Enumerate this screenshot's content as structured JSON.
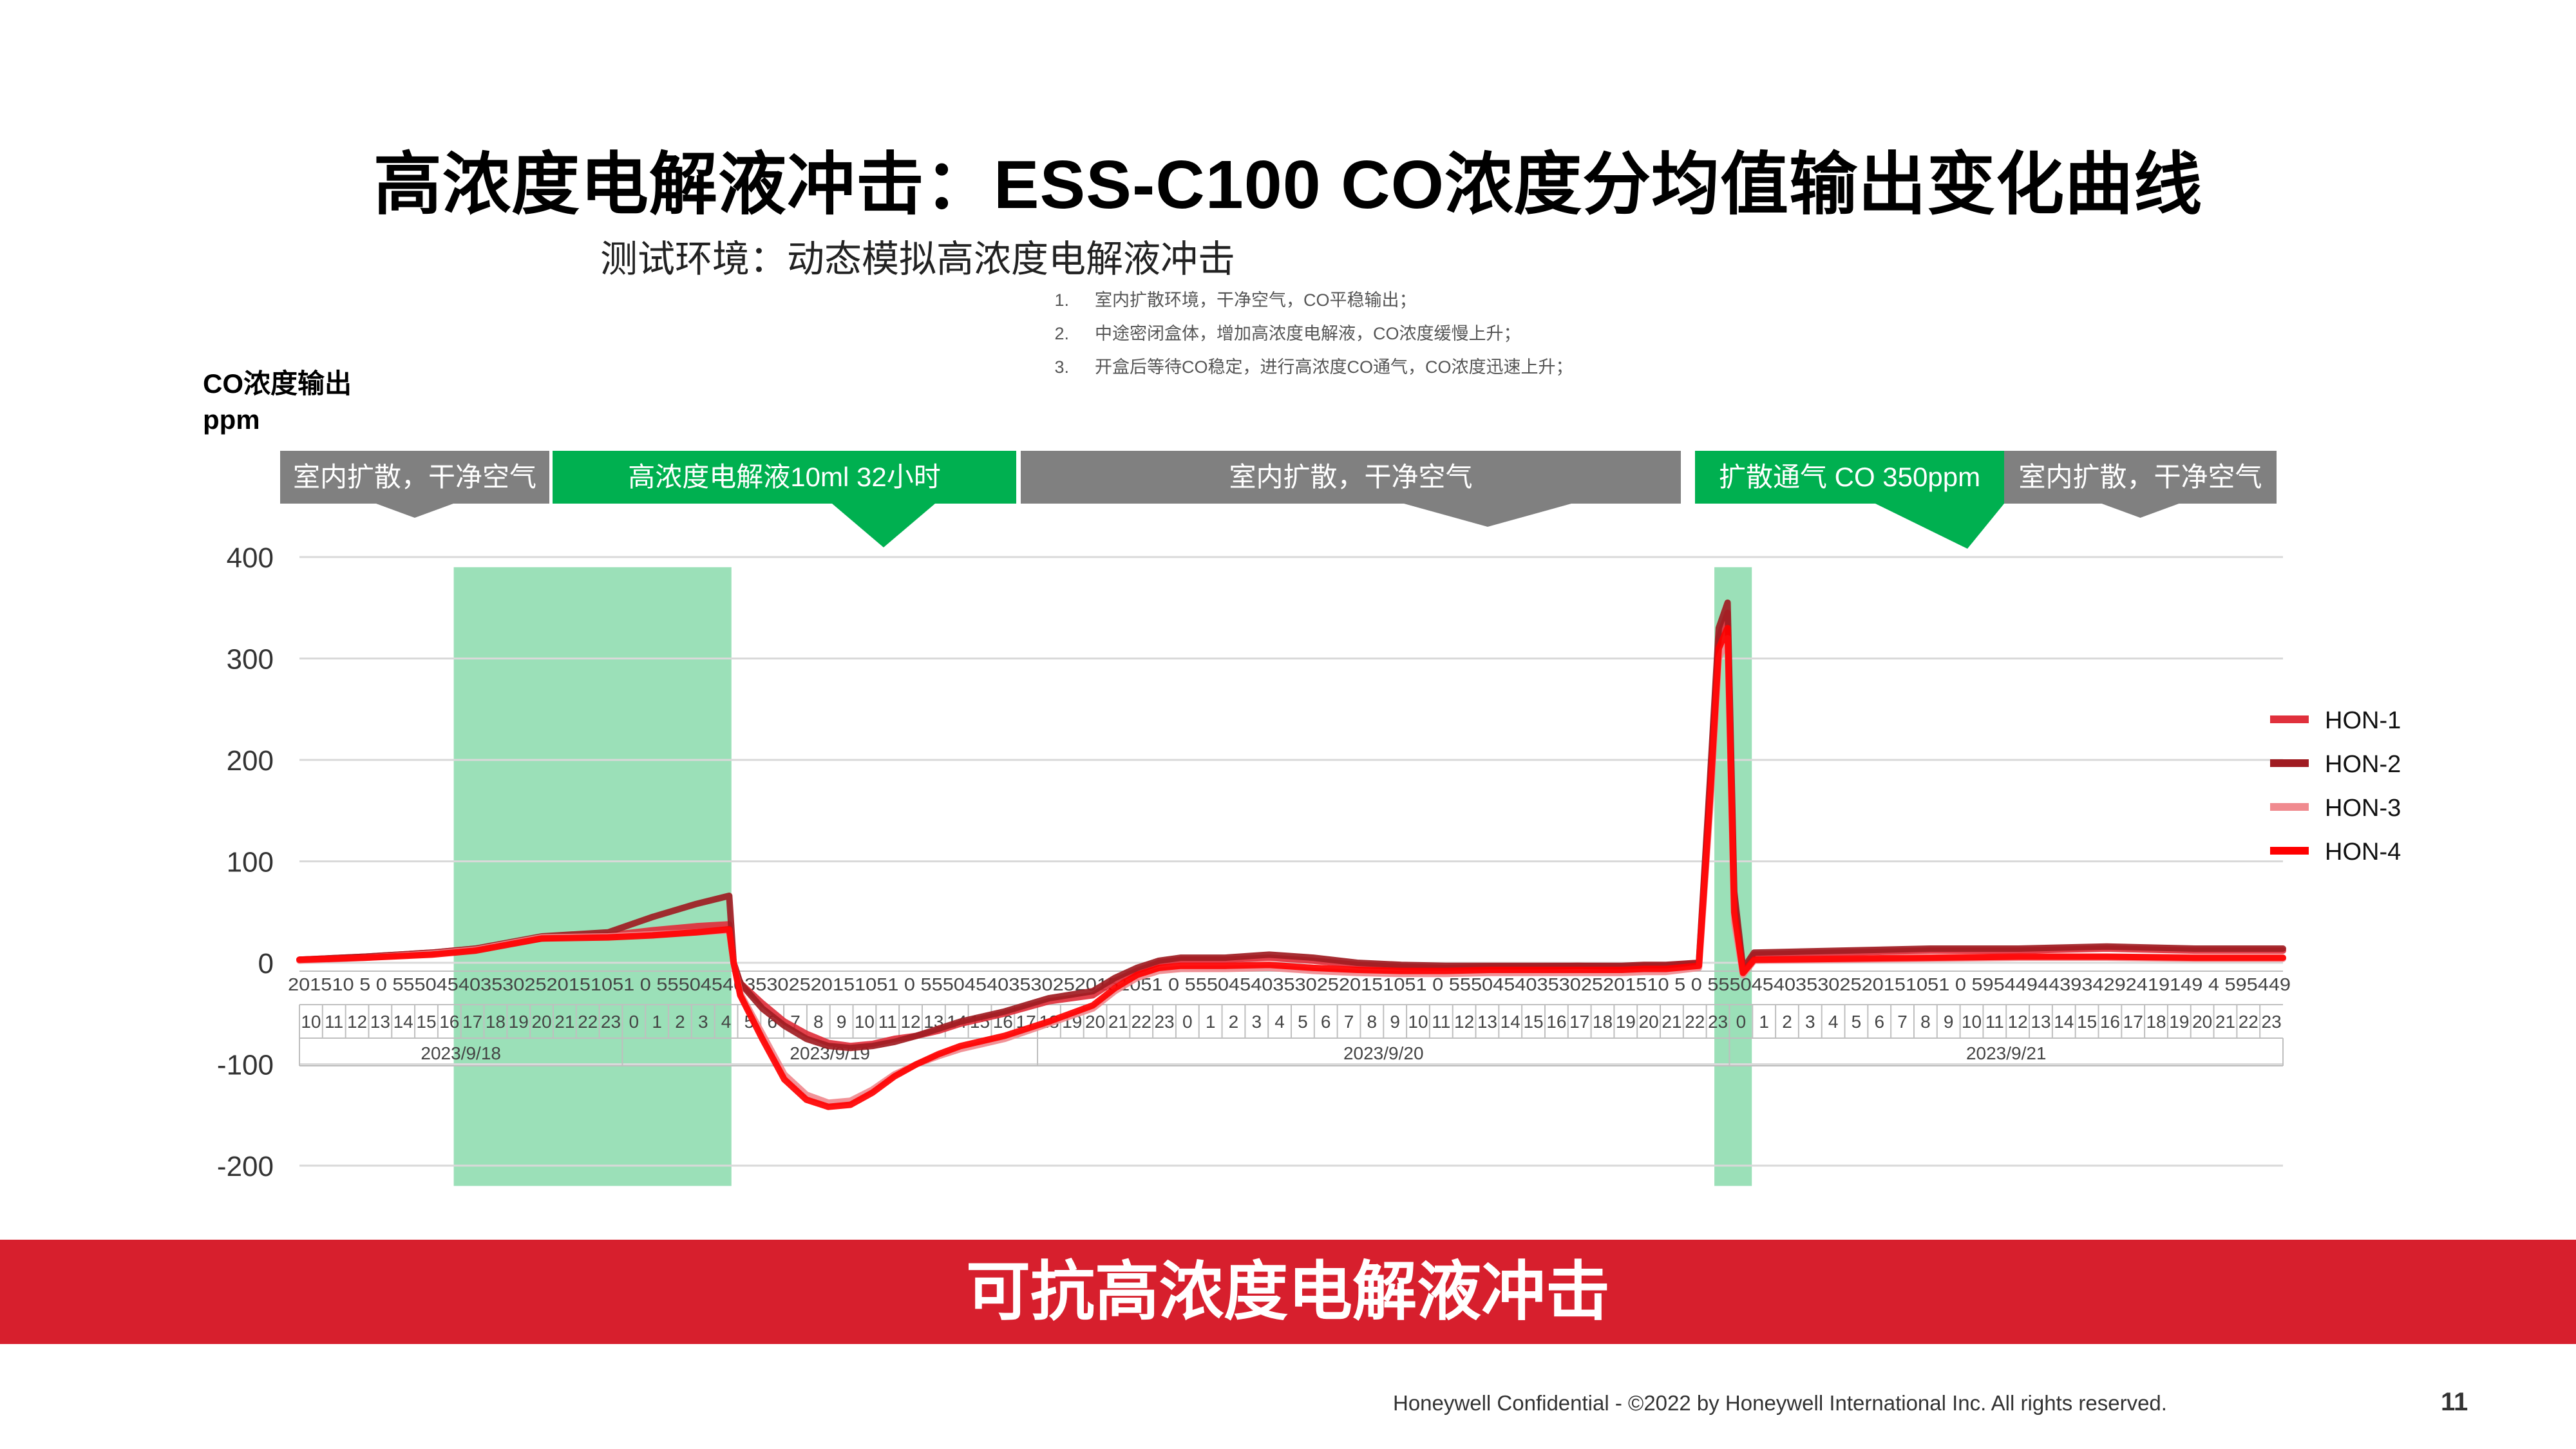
{
  "slide": {
    "title": "高浓度电解液冲击：ESS-C100 CO浓度分均值输出变化曲线",
    "subtitle": "测试环境：动态模拟高浓度电解液冲击",
    "notes": [
      {
        "num": "1.",
        "text": "室内扩散环境，干净空气，CO平稳输出；"
      },
      {
        "num": "2.",
        "text": "中途密闭盒体，增加高浓度电解液，CO浓度缓慢上升；"
      },
      {
        "num": "3.",
        "text": "开盒后等待CO稳定，进行高浓度CO通气，CO浓度迅速上升；"
      }
    ],
    "ylabel_line1": "CO浓度输出",
    "ylabel_line2": "ppm",
    "banner": "可抗高浓度电解液冲击",
    "footer": "Honeywell Confidential - ©2022 by Honeywell International Inc. All rights reserved.",
    "page_number": "11"
  },
  "colors": {
    "gray_phase": "#808080",
    "green_phase": "#00b050",
    "green_region": "#9be0b8",
    "banner_red": "#d71f2d",
    "HON-1": "#e0303c",
    "HON-2": "#a01c22",
    "HON-3": "#f08a8f",
    "HON-4": "#ff0000",
    "overlay": "#8a4a20"
  },
  "chart_data": {
    "type": "line",
    "title": "",
    "xlabel": "",
    "ylabel": "CO浓度输出 ppm",
    "ylim": [
      -200,
      400
    ],
    "yticks": [
      400,
      300,
      200,
      100,
      0,
      -100,
      -200
    ],
    "grid": true,
    "legend_position": "right",
    "x_axis": {
      "dates": [
        {
          "label": "2023/9/18",
          "hour_start": 10,
          "hour_end": 23
        },
        {
          "label": "2023/9/19",
          "hour_start": 0,
          "hour_end": 17
        },
        {
          "label": "2023/9/20",
          "hour_start": 18,
          "hour_end": 23
        },
        {
          "label": "2023/9/21",
          "hour_start": 0,
          "hour_end": 23
        }
      ],
      "hour_labels": [
        "10",
        "11",
        "12",
        "13",
        "14",
        "15",
        "16",
        "17",
        "18",
        "19",
        "20",
        "21",
        "22",
        "23",
        "0",
        "1",
        "2",
        "3",
        "4",
        "5",
        "6",
        "7",
        "8",
        "9",
        "10",
        "11",
        "12",
        "13",
        "14",
        "15",
        "16",
        "17",
        "18",
        "19",
        "20",
        "21",
        "22",
        "23",
        "0",
        "1",
        "2",
        "3",
        "4",
        "5",
        "6",
        "7",
        "8",
        "9",
        "10",
        "11",
        "12",
        "13",
        "14",
        "15",
        "16",
        "17",
        "18",
        "19",
        "20",
        "21",
        "22",
        "23",
        "0",
        "1",
        "2",
        "3",
        "4",
        "5",
        "6",
        "7",
        "8",
        "9",
        "10",
        "11",
        "12",
        "13",
        "14",
        "15",
        "16",
        "17",
        "18",
        "19",
        "20",
        "21",
        "22",
        "23"
      ],
      "minute_labels": "201510 5 0 5550454035302520151051 0 5550454035302520151051 0 5550454035302520151051 0 5550454035302520151051 0 55504540353025201510 5 0 5550454035302520151051 0 595449443934292419149 4 595449"
    },
    "phases": [
      {
        "label": "室内扩散，干净空气",
        "kind": "gray",
        "x_start": 0,
        "x_end": 7.0
      },
      {
        "label": "高浓度电解液10ml 32小时",
        "kind": "green",
        "x_start": 7.0,
        "x_end": 19.6,
        "highlight": true
      },
      {
        "label": "室内扩散，干净空气",
        "kind": "gray",
        "x_start": 19.6,
        "x_end": 62.0
      },
      {
        "label": "扩散通气 CO 350ppm",
        "kind": "green",
        "x_start": 62.0,
        "x_end": 66.0,
        "highlight": true
      },
      {
        "label": "室内扩散，干净空气",
        "kind": "gray",
        "x_start": 66.0,
        "x_end": 90.0
      }
    ],
    "series": [
      {
        "name": "HON-1",
        "color": "#e0303c",
        "x": [
          0,
          3,
          6,
          8,
          11,
          14,
          16,
          18,
          19.5,
          19.7,
          20,
          21,
          22,
          23,
          24,
          25,
          26,
          27,
          28,
          29,
          30,
          32,
          34,
          36,
          37,
          38,
          39,
          40,
          41,
          42,
          44,
          46,
          48,
          50,
          52,
          54,
          56,
          58,
          60,
          61,
          62,
          63.5,
          64,
          64.4,
          64.8,
          65.1,
          65.5,
          66,
          70,
          74,
          78,
          82,
          86,
          90
        ],
        "y": [
          3,
          6,
          10,
          14,
          24,
          27,
          32,
          36,
          38,
          0,
          -20,
          -40,
          -58,
          -70,
          -79,
          -82,
          -80,
          -75,
          -72,
          -67,
          -60,
          -50,
          -38,
          -32,
          -18,
          -8,
          0,
          3,
          3,
          3,
          5,
          2,
          -2,
          -4,
          -5,
          -4,
          -4,
          -3,
          -4,
          -3,
          -3,
          0,
          170,
          320,
          345,
          60,
          -10,
          8,
          10,
          12,
          12,
          14,
          12,
          12
        ]
      },
      {
        "name": "HON-2",
        "color": "#a01c22",
        "x": [
          0,
          3,
          6,
          8,
          11,
          14,
          16,
          18,
          19.5,
          19.7,
          20,
          21,
          22,
          23,
          24,
          25,
          26,
          27,
          28,
          29,
          30,
          32,
          34,
          36,
          37,
          38,
          39,
          40,
          41,
          42,
          44,
          46,
          48,
          50,
          52,
          54,
          56,
          58,
          60,
          61,
          62,
          63.5,
          64,
          64.4,
          64.8,
          65.1,
          65.5,
          66,
          70,
          74,
          78,
          82,
          86,
          90
        ],
        "y": [
          3,
          6,
          10,
          14,
          26,
          30,
          45,
          58,
          66,
          0,
          -20,
          -45,
          -62,
          -75,
          -82,
          -84,
          -82,
          -78,
          -72,
          -65,
          -58,
          -48,
          -35,
          -28,
          -15,
          -5,
          2,
          5,
          5,
          5,
          8,
          5,
          0,
          -2,
          -3,
          -3,
          -3,
          -3,
          -3,
          -2,
          -2,
          0,
          180,
          330,
          355,
          70,
          -6,
          10,
          12,
          14,
          14,
          16,
          14,
          14
        ]
      },
      {
        "name": "HON-3",
        "color": "#f08a8f",
        "x": [
          0,
          3,
          6,
          8,
          11,
          14,
          16,
          18,
          19.5,
          19.7,
          20,
          21,
          22,
          23,
          24,
          25,
          26,
          27,
          28,
          29,
          30,
          32,
          34,
          36,
          37,
          38,
          39,
          40,
          41,
          42,
          44,
          46,
          48,
          50,
          52,
          54,
          56,
          58,
          60,
          61,
          62,
          63.5,
          64,
          64.4,
          64.8,
          65.1,
          65.5,
          66,
          70,
          74,
          78,
          82,
          86,
          90
        ],
        "y": [
          2,
          5,
          9,
          13,
          25,
          26,
          28,
          30,
          32,
          0,
          -30,
          -70,
          -110,
          -130,
          -138,
          -136,
          -125,
          -110,
          -100,
          -92,
          -85,
          -75,
          -60,
          -45,
          -28,
          -15,
          -8,
          -6,
          -6,
          -6,
          -5,
          -8,
          -10,
          -11,
          -11,
          -10,
          -10,
          -10,
          -10,
          -9,
          -9,
          -5,
          150,
          300,
          320,
          40,
          -12,
          2,
          3,
          4,
          5,
          5,
          4,
          4
        ]
      },
      {
        "name": "HON-4",
        "color": "#ff0000",
        "x": [
          0,
          3,
          6,
          8,
          11,
          14,
          16,
          18,
          19.5,
          19.7,
          20,
          21,
          22,
          23,
          24,
          25,
          26,
          27,
          28,
          29,
          30,
          32,
          34,
          36,
          37,
          38,
          39,
          40,
          41,
          42,
          44,
          46,
          48,
          50,
          52,
          54,
          56,
          58,
          60,
          61,
          62,
          63.5,
          64,
          64.4,
          64.8,
          65.1,
          65.5,
          66,
          70,
          74,
          78,
          82,
          86,
          90
        ],
        "y": [
          3,
          5,
          8,
          12,
          24,
          25,
          27,
          30,
          33,
          0,
          -32,
          -75,
          -115,
          -135,
          -142,
          -140,
          -128,
          -112,
          -100,
          -90,
          -82,
          -72,
          -58,
          -42,
          -25,
          -12,
          -5,
          -3,
          -3,
          -3,
          -2,
          -5,
          -7,
          -8,
          -8,
          -7,
          -7,
          -7,
          -7,
          -6,
          -6,
          -3,
          160,
          310,
          330,
          50,
          -10,
          3,
          4,
          5,
          6,
          6,
          5,
          5
        ]
      }
    ]
  }
}
